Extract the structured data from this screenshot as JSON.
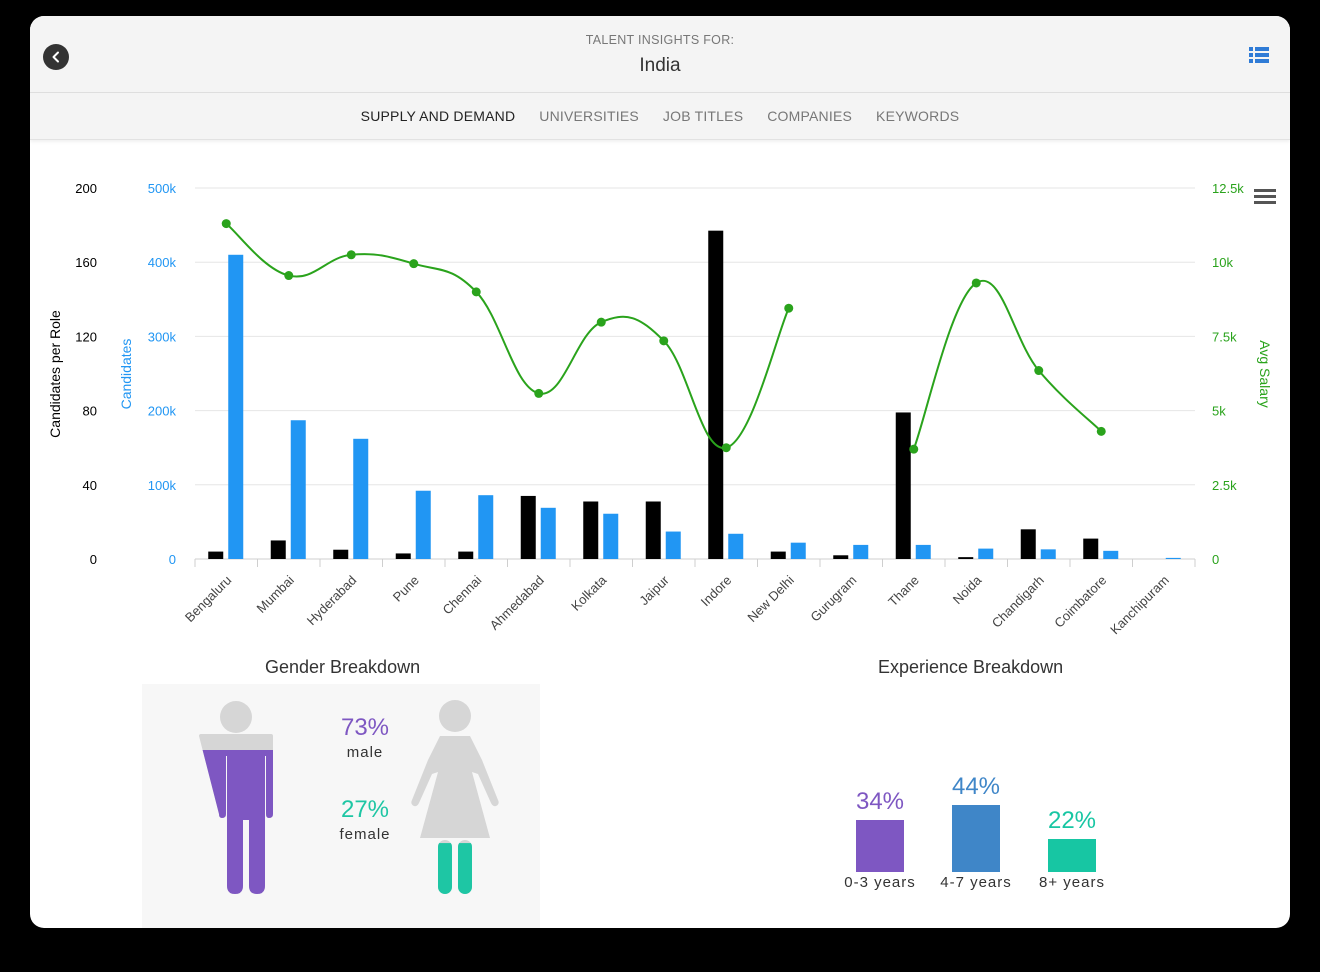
{
  "header": {
    "subtitle": "TALENT INSIGHTS FOR:",
    "title": "India",
    "back_icon": "chevron-left-icon",
    "list_icon": "list-view-icon"
  },
  "tabs": [
    {
      "label": "SUPPLY AND DEMAND",
      "active": true
    },
    {
      "label": "UNIVERSITIES",
      "active": false
    },
    {
      "label": "JOB TITLES",
      "active": false
    },
    {
      "label": "COMPANIES",
      "active": false
    },
    {
      "label": "KEYWORDS",
      "active": false
    }
  ],
  "chart_data": {
    "type": "bar",
    "categories": [
      "Bengaluru",
      "Mumbai",
      "Hyderabad",
      "Pune",
      "Chennai",
      "Ahmedabad",
      "Kolkata",
      "Jaipur",
      "Indore",
      "New Delhi",
      "Gurugram",
      "Thane",
      "Noida",
      "Chandigarh",
      "Coimbatore",
      "Kanchipuram"
    ],
    "series": [
      {
        "axis": "left",
        "color": "#000000",
        "values": [
          4,
          10,
          5,
          3,
          4,
          34,
          31,
          31,
          177,
          4,
          2,
          79,
          1,
          16,
          11,
          0
        ]
      },
      {
        "axis": "left2",
        "color": "#2196f3",
        "values": [
          410000,
          187000,
          162000,
          92000,
          86000,
          69000,
          61000,
          37000,
          34000,
          22000,
          19000,
          19000,
          14000,
          13000,
          11000,
          1500
        ]
      },
      {
        "axis": "right",
        "color": "#2aa31c",
        "type": "spline",
        "values": [
          11300,
          9550,
          10250,
          9950,
          9000,
          5580,
          7980,
          7350,
          3750,
          8450,
          null,
          3700,
          9300,
          6350,
          4300,
          null
        ]
      }
    ],
    "yaxes": {
      "left": {
        "title": "Candidates per Role",
        "ticks": [
          "0",
          "40",
          "80",
          "120",
          "160",
          "200"
        ],
        "min": 0,
        "max": 200,
        "color": "#000000"
      },
      "left2": {
        "title": "Candidates",
        "ticks": [
          "0",
          "100k",
          "200k",
          "300k",
          "400k",
          "500k"
        ],
        "min": 0,
        "max": 500000,
        "color": "#2196f3"
      },
      "right": {
        "title": "Avg Salary",
        "ticks": [
          "0",
          "2.5k",
          "5k",
          "7.5k",
          "10k",
          "12.5k"
        ],
        "min": 0,
        "max": 12500,
        "color": "#2aa31c"
      }
    },
    "grid": true,
    "menu_icon": "hamburger-menu-icon"
  },
  "gender": {
    "title": "Gender Breakdown",
    "male_pct": "73%",
    "male_label": "male",
    "male_value": 0.73,
    "female_pct": "27%",
    "female_label": "female",
    "female_value": 0.27,
    "male_color": "#7e57c2",
    "female_color": "#1ec6a4",
    "male_icon": "male-person-icon",
    "female_icon": "female-person-icon"
  },
  "experience": {
    "title": "Experience Breakdown",
    "items": [
      {
        "label": "0-3 years",
        "pct": "34%",
        "value": 34,
        "color": "#7e57c2"
      },
      {
        "label": "4-7 years",
        "pct": "44%",
        "value": 44,
        "color": "#3f86c8"
      },
      {
        "label": "8+ years",
        "pct": "22%",
        "value": 22,
        "color": "#17c6a3"
      }
    ]
  }
}
